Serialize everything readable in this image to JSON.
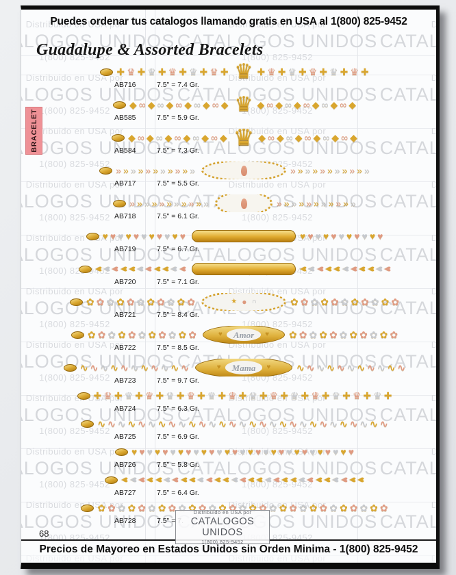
{
  "page": {
    "header": "Puedes ordenar tus catalogos llamando gratis en USA al 1(800) 825-9452",
    "title": "Guadalupe & Assorted Bracelets",
    "category_tab": "BRACELET",
    "page_number": "68",
    "footer": "Precios de Mayoreo en Estados Unidos sin Orden Minima  - 1(800) 825-9452"
  },
  "watermark": {
    "line1": "Distribuido en USA por",
    "line2": "CATALOGOS UNIDOS",
    "line3": "1(800) 825-9452"
  },
  "stamp": {
    "line1": "Distribuido en USA por",
    "line2": "CATALOGOS UNIDOS",
    "line3": "1(800) 825-9452"
  },
  "products": [
    {
      "code": "AB716",
      "size_weight": "7.5\" = 7.4 Gr.",
      "chain": "crown-cross",
      "center": "crown"
    },
    {
      "code": "AB585",
      "size_weight": "7.5\" = 5.9 Gr.",
      "chain": "fancy-link",
      "center": "crown"
    },
    {
      "code": "AB584",
      "size_weight": "7.5\" = 7.3 Gr.",
      "chain": "fancy-link",
      "center": "crown-large"
    },
    {
      "code": "AB717",
      "size_weight": "7.5\" = 5.5 Gr.",
      "chain": "chevron",
      "center": "guadalupe-marquise"
    },
    {
      "code": "AB718",
      "size_weight": "7.5\" = 6.1 Gr.",
      "chain": "chevron",
      "center": "guadalupe-oval"
    },
    {
      "code": "AB719",
      "size_weight": "7.5\" = 6.7 Gr.",
      "chain": "hearts",
      "center": "id-plate"
    },
    {
      "code": "AB720",
      "size_weight": "7.5\" = 7.1 Gr.",
      "chain": "heart-chevron",
      "center": "id-plate"
    },
    {
      "code": "AB721",
      "size_weight": "7.5\" = 8.4 Gr.",
      "chain": "flowers",
      "center": "charm-oval"
    },
    {
      "code": "AB722",
      "size_weight": "7.5\" = 8.5 Gr.",
      "chain": "flowers",
      "center": "amor-plate",
      "center_text": "Amor"
    },
    {
      "code": "AB723",
      "size_weight": "7.5\" = 9.7 Gr.",
      "chain": "swirl",
      "center": "mama-plate",
      "center_text": "Mama"
    },
    {
      "code": "AB724",
      "size_weight": "7.5\" = 6.3 Gr.",
      "chain": "crown-cross",
      "center": "none"
    },
    {
      "code": "AB725",
      "size_weight": "7.5\" = 6.9 Gr.",
      "chain": "swirl",
      "center": "none"
    },
    {
      "code": "AB726",
      "size_weight": "7.5\" = 5.8 Gr.",
      "chain": "hearts",
      "center": "none"
    },
    {
      "code": "AB727",
      "size_weight": "7.5\" = 6.4 Gr.",
      "chain": "heart-chevron",
      "center": "none"
    },
    {
      "code": "AB728",
      "size_weight": "7.5\" = 7.",
      "chain": "flowers",
      "center": "none"
    }
  ],
  "colors": {
    "gold": "#d9a62e",
    "rose": "#e09a81",
    "silver": "#c6c9ce",
    "tab_bg": "#ef9196",
    "watermark_gray": "#d5d7db"
  }
}
